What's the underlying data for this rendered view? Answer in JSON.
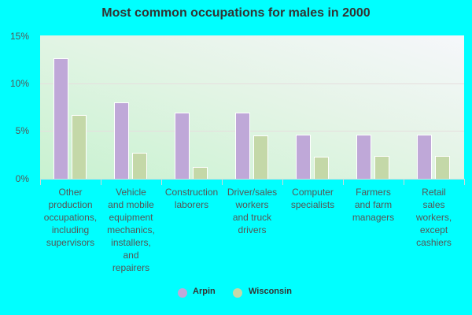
{
  "chart_data": {
    "type": "bar",
    "title": "Most common occupations for males in 2000",
    "xlabel": "",
    "ylabel": "",
    "ylim": [
      0,
      15
    ],
    "yticks": [
      "0%",
      "5%",
      "10%",
      "15%"
    ],
    "grid": true,
    "legend_position": "bottom",
    "categories": [
      "Other production occupations, including supervisors",
      "Vehicle and mobile equipment mechanics, installers, and repairers",
      "Construction laborers",
      "Driver/sales workers and truck drivers",
      "Computer specialists",
      "Farmers and farm managers",
      "Retail sales workers, except cashiers"
    ],
    "category_lines": [
      [
        "Other",
        "production",
        "occupations,",
        "including",
        "supervisors"
      ],
      [
        "Vehicle",
        "and mobile",
        "equipment",
        "mechanics,",
        "installers,",
        "and",
        "repairers"
      ],
      [
        "Construction",
        "laborers"
      ],
      [
        "Driver/sales",
        "workers",
        "and truck",
        "drivers"
      ],
      [
        "Computer",
        "specialists"
      ],
      [
        "Farmers",
        "and farm",
        "managers"
      ],
      [
        "Retail",
        "sales",
        "workers,",
        "except",
        "cashiers"
      ]
    ],
    "series": [
      {
        "name": "Arpin",
        "color": "#bfa8d8",
        "values": [
          12.6,
          8.0,
          6.9,
          6.9,
          4.6,
          4.6,
          4.6
        ]
      },
      {
        "name": "Wisconsin",
        "color": "#c4d8a8",
        "values": [
          6.7,
          2.7,
          1.2,
          4.5,
          2.3,
          2.4,
          2.4
        ]
      }
    ]
  }
}
